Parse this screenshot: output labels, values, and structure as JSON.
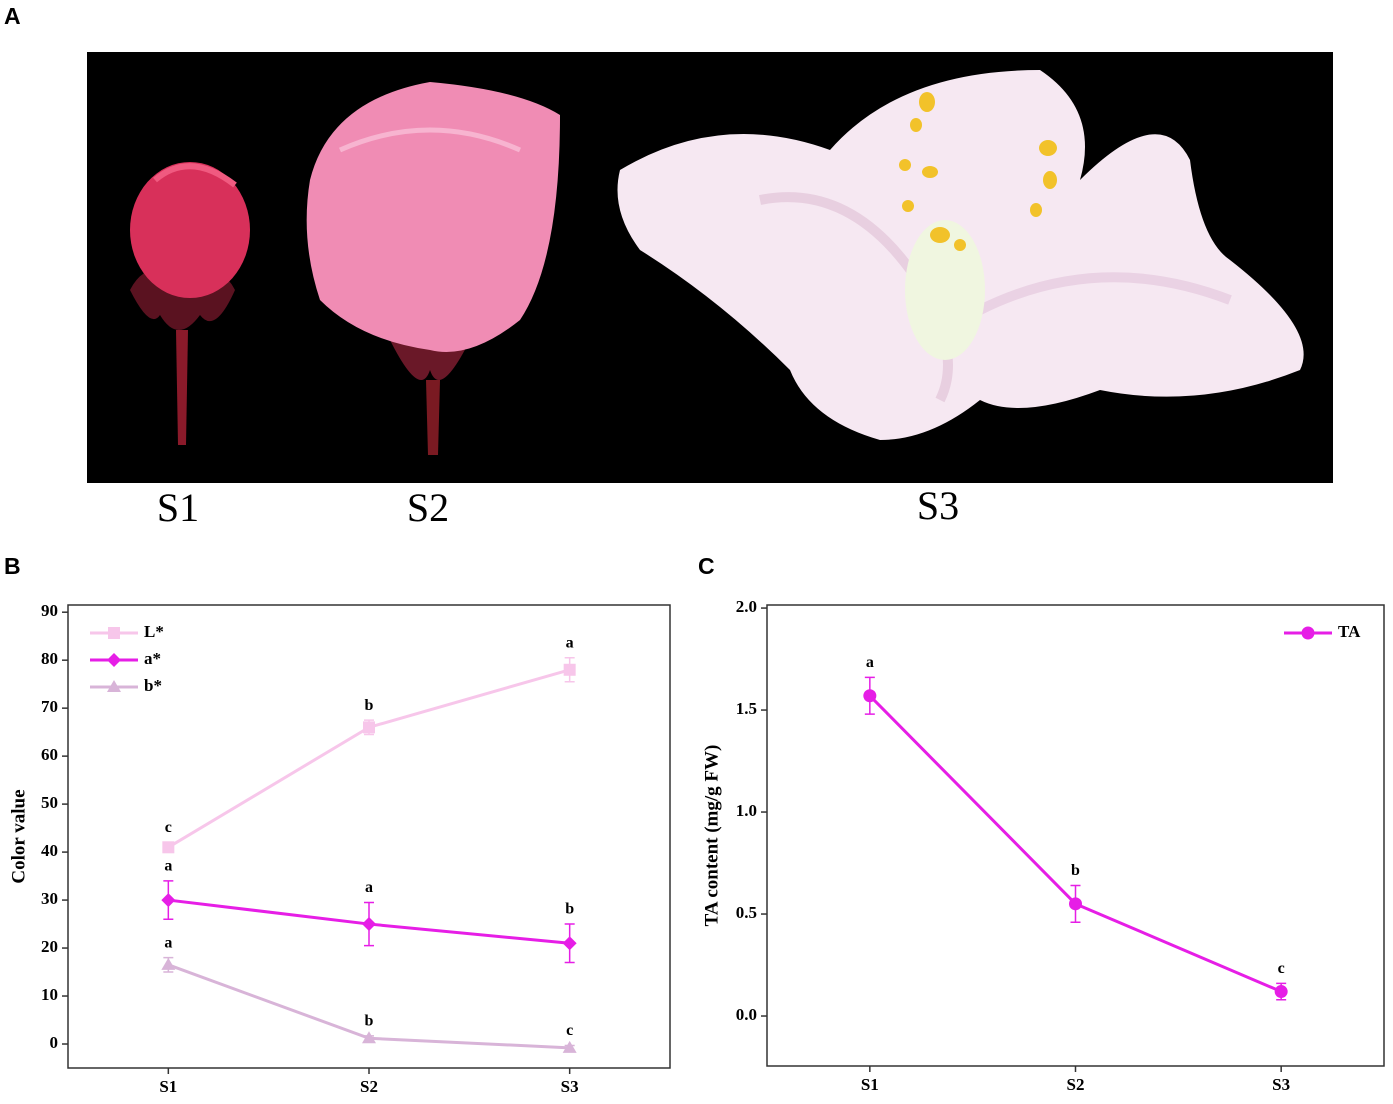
{
  "panel_labels": [
    "A",
    "B",
    "C"
  ],
  "photo_labels": [
    "S1",
    "S2",
    "S3"
  ],
  "chart_data": [
    {
      "type": "line",
      "ylabel": "Color value",
      "categories": [
        "S1",
        "S2",
        "S3"
      ],
      "ylim": [
        -5,
        91.5
      ],
      "yticks": [
        0,
        10,
        20,
        30,
        40,
        50,
        60,
        70,
        80,
        90
      ],
      "legend": "upper left",
      "series": [
        {
          "name": "L*",
          "color": "#f7c6ea",
          "marker": "square",
          "values": [
            41,
            66,
            78
          ],
          "errors": [
            1,
            1.5,
            2.5
          ],
          "letters": [
            "c",
            "b",
            "a"
          ]
        },
        {
          "name": "a*",
          "color": "#e61ee6",
          "marker": "diamond",
          "values": [
            30,
            25,
            21
          ],
          "errors": [
            4,
            4.5,
            4
          ],
          "letters": [
            "a",
            "a",
            "b"
          ]
        },
        {
          "name": "b*",
          "color": "#d8b4d8",
          "marker": "triangle",
          "values": [
            16.5,
            1.2,
            -0.8
          ],
          "errors": [
            1.5,
            0.5,
            0.5
          ],
          "letters": [
            "a",
            "b",
            "c"
          ]
        }
      ]
    },
    {
      "type": "line",
      "ylabel": "TA content (mg/g FW)",
      "categories": [
        "S1",
        "S2",
        "S3"
      ],
      "ylim": [
        -0.245,
        2.015
      ],
      "yticks": [
        {
          "value": 0,
          "label": "0.0"
        },
        {
          "value": 0.5,
          "label": "0.5"
        },
        {
          "value": 1,
          "label": "1.0"
        },
        {
          "value": 1.5,
          "label": "1.5"
        },
        {
          "value": 2,
          "label": "2.0"
        }
      ],
      "legend": "upper right",
      "series": [
        {
          "name": "TA",
          "color": "#e61ee6",
          "marker": "circle",
          "values": [
            1.57,
            0.55,
            0.12
          ],
          "errors": [
            0.09,
            0.09,
            0.04
          ],
          "letters": [
            "a",
            "b",
            "c"
          ]
        }
      ]
    }
  ]
}
